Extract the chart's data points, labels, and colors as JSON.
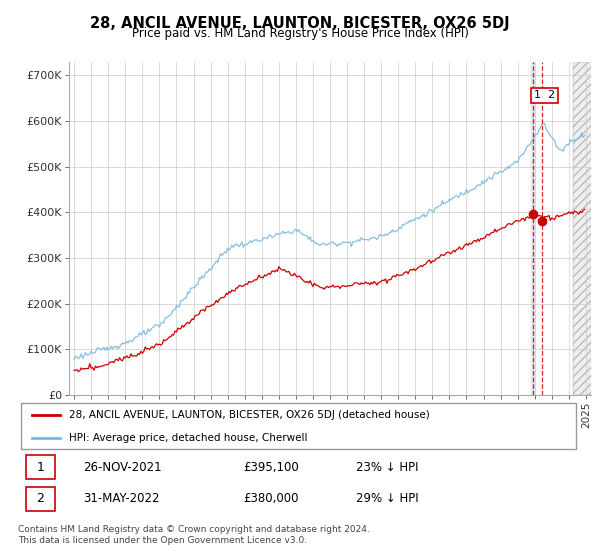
{
  "title": "28, ANCIL AVENUE, LAUNTON, BICESTER, OX26 5DJ",
  "subtitle": "Price paid vs. HM Land Registry's House Price Index (HPI)",
  "ylabel_ticks": [
    "£0",
    "£100K",
    "£200K",
    "£300K",
    "£400K",
    "£500K",
    "£600K",
    "£700K"
  ],
  "ytick_values": [
    0,
    100000,
    200000,
    300000,
    400000,
    500000,
    600000,
    700000
  ],
  "ylim": [
    0,
    730000
  ],
  "xlim_start": 1994.7,
  "xlim_end": 2025.3,
  "hpi_color": "#7ab8e0",
  "price_color": "#cc0000",
  "dashed_line_color": "#cc0000",
  "future_shade_start": 2024.25,
  "marker1_date": 2021.9,
  "marker2_date": 2022.4,
  "marker1_price": 395100,
  "marker2_price": 380000,
  "legend_label1": "28, ANCIL AVENUE, LAUNTON, BICESTER, OX26 5DJ (detached house)",
  "legend_label2": "HPI: Average price, detached house, Cherwell",
  "transaction1_num": "1",
  "transaction1_date": "26-NOV-2021",
  "transaction1_price": "£395,100",
  "transaction1_hpi": "23% ↓ HPI",
  "transaction2_num": "2",
  "transaction2_date": "31-MAY-2022",
  "transaction2_price": "£380,000",
  "transaction2_hpi": "29% ↓ HPI",
  "footnote": "Contains HM Land Registry data © Crown copyright and database right 2024.\nThis data is licensed under the Open Government Licence v3.0.",
  "background_color": "#ffffff",
  "grid_color": "#cccccc"
}
